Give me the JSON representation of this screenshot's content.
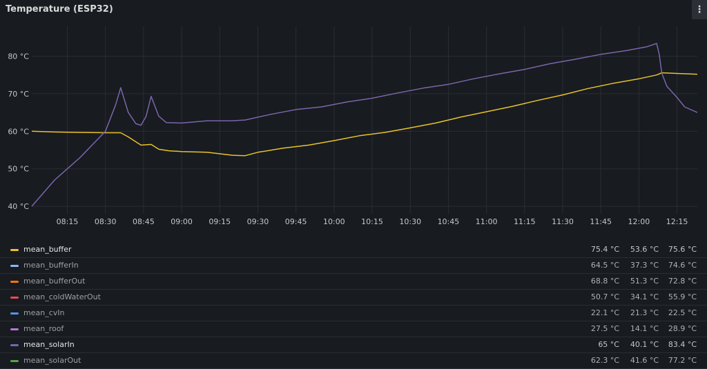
{
  "panel": {
    "title": "Temperature (ESP32)",
    "menu_icon": "vertical-dots-icon"
  },
  "chart_data": {
    "type": "line",
    "title": "Temperature (ESP32)",
    "x_ticks": [
      "08:15",
      "08:30",
      "08:45",
      "09:00",
      "09:15",
      "09:30",
      "09:45",
      "10:00",
      "10:15",
      "10:30",
      "10:45",
      "11:00",
      "11:15",
      "11:30",
      "11:45",
      "12:00",
      "12:15"
    ],
    "x_range": [
      "08:01",
      "12:23"
    ],
    "y_ticks": [
      "40 °C",
      "50 °C",
      "60 °C",
      "70 °C",
      "80 °C"
    ],
    "ylim": [
      38,
      88
    ],
    "grid": true,
    "legend_placement": "bottom",
    "series": [
      {
        "name": "mean_buffer",
        "color": "#e8c32c",
        "visible": true,
        "points": [
          [
            "08:01",
            60.0
          ],
          [
            "08:10",
            59.8
          ],
          [
            "08:20",
            59.7
          ],
          [
            "08:30",
            59.6
          ],
          [
            "08:36",
            59.6
          ],
          [
            "08:39",
            58.5
          ],
          [
            "08:44",
            56.3
          ],
          [
            "08:48",
            56.5
          ],
          [
            "08:51",
            55.2
          ],
          [
            "08:55",
            54.8
          ],
          [
            "09:00",
            54.6
          ],
          [
            "09:10",
            54.4
          ],
          [
            "09:20",
            53.6
          ],
          [
            "09:25",
            53.5
          ],
          [
            "09:30",
            54.4
          ],
          [
            "09:40",
            55.5
          ],
          [
            "09:50",
            56.3
          ],
          [
            "10:00",
            57.5
          ],
          [
            "10:10",
            58.8
          ],
          [
            "10:20",
            59.7
          ],
          [
            "10:30",
            60.9
          ],
          [
            "10:40",
            62.2
          ],
          [
            "10:50",
            63.8
          ],
          [
            "11:00",
            65.2
          ],
          [
            "11:10",
            66.6
          ],
          [
            "11:20",
            68.2
          ],
          [
            "11:30",
            69.7
          ],
          [
            "11:40",
            71.4
          ],
          [
            "11:50",
            72.8
          ],
          [
            "12:00",
            74.0
          ],
          [
            "12:07",
            75.0
          ],
          [
            "12:09",
            75.6
          ],
          [
            "12:15",
            75.4
          ],
          [
            "12:23",
            75.2
          ]
        ]
      },
      {
        "name": "mean_bufferIn",
        "color": "#8ab8ff",
        "visible": false,
        "points": []
      },
      {
        "name": "mean_bufferOut",
        "color": "#ff780a",
        "visible": false,
        "points": []
      },
      {
        "name": "mean_coldWaterOut",
        "color": "#f2495c",
        "visible": false,
        "points": []
      },
      {
        "name": "mean_cvIn",
        "color": "#5794f2",
        "visible": false,
        "points": []
      },
      {
        "name": "mean_roof",
        "color": "#b877d9",
        "visible": false,
        "points": []
      },
      {
        "name": "mean_solarIn",
        "color": "#7a66ae",
        "visible": true,
        "points": [
          [
            "08:01",
            40.0
          ],
          [
            "08:10",
            47.0
          ],
          [
            "08:20",
            53.0
          ],
          [
            "08:30",
            60.0
          ],
          [
            "08:34",
            67.0
          ],
          [
            "08:36",
            71.6
          ],
          [
            "08:39",
            65.0
          ],
          [
            "08:42",
            62.0
          ],
          [
            "08:44",
            61.6
          ],
          [
            "08:46",
            64.0
          ],
          [
            "08:48",
            69.3
          ],
          [
            "08:51",
            64.0
          ],
          [
            "08:54",
            62.3
          ],
          [
            "09:00",
            62.2
          ],
          [
            "09:10",
            62.8
          ],
          [
            "09:20",
            62.8
          ],
          [
            "09:25",
            63.0
          ],
          [
            "09:35",
            64.5
          ],
          [
            "09:45",
            65.8
          ],
          [
            "09:55",
            66.5
          ],
          [
            "10:05",
            67.8
          ],
          [
            "10:15",
            68.8
          ],
          [
            "10:25",
            70.2
          ],
          [
            "10:35",
            71.5
          ],
          [
            "10:45",
            72.5
          ],
          [
            "10:55",
            74.0
          ],
          [
            "11:05",
            75.3
          ],
          [
            "11:15",
            76.5
          ],
          [
            "11:25",
            78.0
          ],
          [
            "11:35",
            79.2
          ],
          [
            "11:45",
            80.5
          ],
          [
            "11:55",
            81.5
          ],
          [
            "12:03",
            82.5
          ],
          [
            "12:07",
            83.4
          ],
          [
            "12:08",
            80.5
          ],
          [
            "12:09",
            75.5
          ],
          [
            "12:11",
            72.0
          ],
          [
            "12:15",
            69.0
          ],
          [
            "12:18",
            66.5
          ],
          [
            "12:23",
            65.0
          ]
        ]
      },
      {
        "name": "mean_solarOut",
        "color": "#56a64b",
        "visible": false,
        "points": []
      }
    ]
  },
  "legend": [
    {
      "name": "mean_buffer",
      "v1": "75.4 °C",
      "v2": "53.6 °C",
      "v3": "75.6 °C"
    },
    {
      "name": "mean_bufferIn",
      "v1": "64.5 °C",
      "v2": "37.3 °C",
      "v3": "74.6 °C"
    },
    {
      "name": "mean_bufferOut",
      "v1": "68.8 °C",
      "v2": "51.3 °C",
      "v3": "72.8 °C"
    },
    {
      "name": "mean_coldWaterOut",
      "v1": "50.7 °C",
      "v2": "34.1 °C",
      "v3": "55.9 °C"
    },
    {
      "name": "mean_cvIn",
      "v1": "22.1 °C",
      "v2": "21.3 °C",
      "v3": "22.5 °C"
    },
    {
      "name": "mean_roof",
      "v1": "27.5 °C",
      "v2": "14.1 °C",
      "v3": "28.9 °C"
    },
    {
      "name": "mean_solarIn",
      "v1": "65 °C",
      "v2": "40.1 °C",
      "v3": "83.4 °C"
    },
    {
      "name": "mean_solarOut",
      "v1": "62.3 °C",
      "v2": "41.6 °C",
      "v3": "77.2 °C"
    }
  ]
}
